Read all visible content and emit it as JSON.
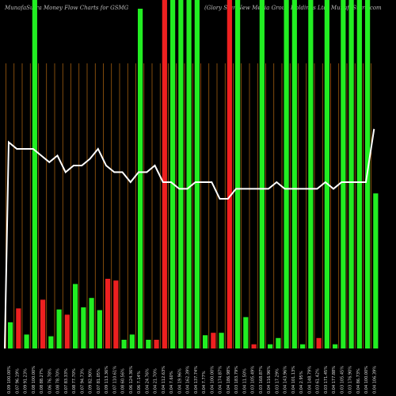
{
  "title": {
    "left": "MunafaSutra  Money Flow  Charts for GSMG",
    "right": "(Glory Star New  Media  Group Holdings Ltd) MunafaSutra.com"
  },
  "chart_data": {
    "type": "bar",
    "title": "MunafaSutra Money Flow Charts for GSMG (Glory Star New Media Group Holdings Ltd) MunafaSutra.com",
    "colors": {
      "up": "#22ee22",
      "down": "#ee2020",
      "line": "#ffffff",
      "grid": "#b86b10",
      "background": "#000000"
    },
    "grid": true,
    "categories": [
      "0.09 100.00%",
      "0.07 96.19%",
      "0.09 91.23%",
      "0.08 100.00%",
      "0.08 88.27%",
      "0.06 76.78%",
      "0.08 78.70%",
      "0.07 83.33%",
      "0.08 77.70%",
      "0.07 94.73%",
      "0.09 82.90%",
      "0.07 81.05%",
      "0.09 113.36%",
      "0.07 110.61%",
      "0.08 60.56%",
      "0.06 124.36%",
      "0.06 7.14%",
      "0.04 24.76%",
      "0.04 21.70%",
      "0.04 112.63%",
      "0.04 7.60%",
      "0.04 19.96%",
      "0.04 162.39%",
      "0.04 137.74%",
      "0.04 7.77%",
      "0.04 100.00%",
      "0.04 174.87%",
      "0.04 186.98%",
      "0.03 183.79%",
      "0.04 11.50%",
      "0.03 105.49%",
      "0.03 168.87%",
      "0.04 116.96%",
      "0.03 17.29%",
      "0.04 143.96%",
      "0.04 101.13%",
      "0.04 2.95%",
      "0.04 148.79%",
      "0.03 61.42%",
      "0.03 171.45%",
      "0.04 177.88%",
      "0.03 105.45%",
      "0.03 176.90%",
      "0.04 86.73%",
      "0.04 100.00%",
      "0.04 106.39%"
    ],
    "direction": [
      "up",
      "down",
      "up",
      "up",
      "down",
      "up",
      "up",
      "down",
      "up",
      "up",
      "up",
      "up",
      "down",
      "down",
      "up",
      "up",
      "up",
      "up",
      "down",
      "down",
      "up",
      "up",
      "up",
      "up",
      "up",
      "down",
      "up",
      "down",
      "up",
      "up",
      "down",
      "up",
      "up",
      "up",
      "up",
      "up",
      "up",
      "up",
      "down",
      "up",
      "up",
      "up",
      "up",
      "up",
      "up",
      "up"
    ],
    "bar_values": [
      7.5,
      11.5,
      4,
      100,
      14,
      3.5,
      11.2,
      9.7,
      18.5,
      11.8,
      14.5,
      11,
      20,
      19.5,
      2.5,
      4,
      97.5,
      2.5,
      2.5,
      100,
      100,
      100,
      100,
      100,
      3.8,
      4.5,
      4.5,
      100,
      100,
      9,
      1.2,
      100,
      1.2,
      3,
      100,
      100,
      1.2,
      100,
      3,
      100,
      1.2,
      100,
      100,
      100,
      100,
      44.5
    ],
    "line_values": [
      62,
      60,
      60,
      60,
      58,
      56,
      58,
      53,
      55,
      55,
      57,
      60,
      55,
      53,
      53,
      50,
      53,
      53,
      55,
      50,
      50,
      48,
      48,
      50,
      50,
      50,
      45,
      45,
      48,
      48,
      48,
      48,
      48,
      50,
      48,
      48,
      48,
      48,
      48,
      50,
      48,
      50,
      50,
      50,
      50,
      66
    ],
    "ylim": [
      0,
      100
    ]
  }
}
